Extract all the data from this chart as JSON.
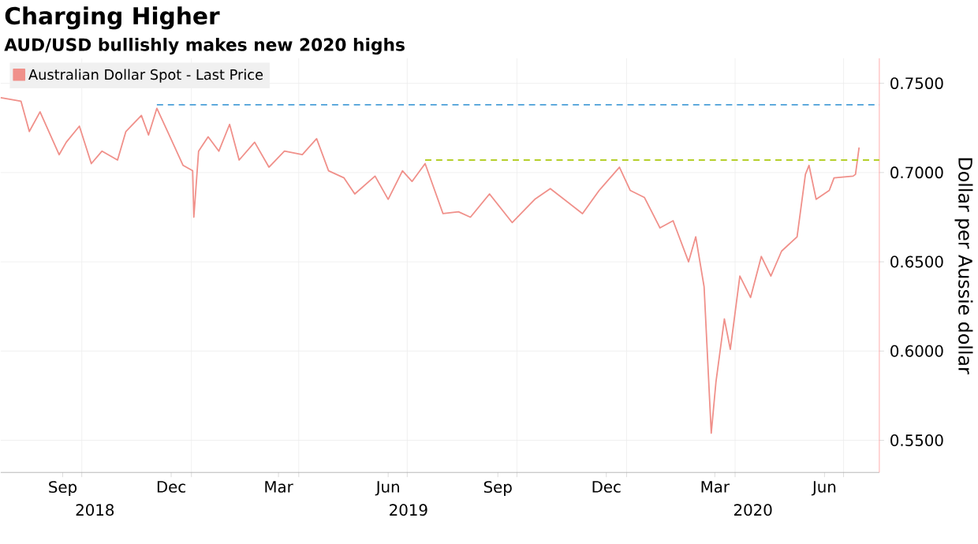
{
  "chart_data": {
    "type": "line",
    "title": "Charging Higher",
    "subtitle": "AUD/USD bullishly makes new 2020 highs",
    "ylabel": "Dollar per Aussie dollar",
    "xlim": [
      "2018-07-25",
      "2020-07-31"
    ],
    "ylim": [
      0.532,
      0.764
    ],
    "xticks": [
      {
        "value": "2018-09-15",
        "label": "Sep"
      },
      {
        "value": "2018-12-15",
        "label": "Dec"
      },
      {
        "value": "2019-03-15",
        "label": "Mar"
      },
      {
        "value": "2019-06-15",
        "label": "Jun"
      },
      {
        "value": "2019-09-15",
        "label": "Sep"
      },
      {
        "value": "2019-12-15",
        "label": "Dec"
      },
      {
        "value": "2020-03-15",
        "label": "Mar"
      },
      {
        "value": "2020-06-15",
        "label": "Jun"
      },
      {
        "value": "2018-10-01",
        "label": null
      },
      {
        "value": "2019-01-01",
        "label": null
      },
      {
        "value": "2019-04-01",
        "label": null
      },
      {
        "value": "2019-07-01",
        "label": null
      },
      {
        "value": "2019-10-01",
        "label": null
      },
      {
        "value": "2020-01-01",
        "label": null
      },
      {
        "value": "2020-04-01",
        "label": null
      },
      {
        "value": "2020-07-01",
        "label": null
      }
    ],
    "yticks": [
      {
        "value": 0.55,
        "label": "0.5500"
      },
      {
        "value": 0.6,
        "label": "0.6000"
      },
      {
        "value": 0.65,
        "label": "0.6500"
      },
      {
        "value": 0.7,
        "label": "0.7000"
      },
      {
        "value": 0.75,
        "label": "0.7500"
      }
    ],
    "annotations": [
      "2018",
      "2019",
      "2020"
    ],
    "grid": true,
    "legend": "top left",
    "marker": "none",
    "series": [
      {
        "name": "Australian Dollar Spot - Last Price",
        "color": "#f0908a",
        "line_style": "solid",
        "x": [
          "2018-07-25",
          "2018-08-11",
          "2018-08-18",
          "2018-08-27",
          "2018-09-12",
          "2018-09-18",
          "2018-09-29",
          "2018-10-09",
          "2018-10-18",
          "2018-10-31",
          "2018-11-07",
          "2018-11-20",
          "2018-11-26",
          "2018-12-03",
          "2018-12-12",
          "2018-12-25",
          "2019-01-02",
          "2019-01-03",
          "2019-01-07",
          "2019-01-15",
          "2019-01-24",
          "2019-02-02",
          "2019-02-10",
          "2019-02-23",
          "2019-03-07",
          "2019-03-20",
          "2019-04-04",
          "2019-04-16",
          "2019-04-26",
          "2019-05-09",
          "2019-05-18",
          "2019-06-04",
          "2019-06-15",
          "2019-06-27",
          "2019-07-05",
          "2019-07-16",
          "2019-07-31",
          "2019-08-13",
          "2019-08-23",
          "2019-09-08",
          "2019-09-27",
          "2019-10-16",
          "2019-10-29",
          "2019-11-25",
          "2019-12-09",
          "2019-12-26",
          "2020-01-04",
          "2020-01-16",
          "2020-01-29",
          "2020-02-09",
          "2020-02-22",
          "2020-02-28",
          "2020-03-06",
          "2020-03-12",
          "2020-03-16",
          "2020-03-23",
          "2020-03-28",
          "2020-04-05",
          "2020-04-14",
          "2020-04-23",
          "2020-05-01",
          "2020-05-10",
          "2020-05-23",
          "2020-05-30",
          "2020-06-02",
          "2020-06-08",
          "2020-06-19",
          "2020-06-23",
          "2020-07-09",
          "2020-07-11",
          "2020-07-14"
        ],
        "values": [
          0.742,
          0.74,
          0.723,
          0.734,
          0.71,
          0.717,
          0.726,
          0.705,
          0.712,
          0.707,
          0.723,
          0.732,
          0.721,
          0.736,
          0.723,
          0.704,
          0.701,
          0.675,
          0.712,
          0.72,
          0.712,
          0.727,
          0.707,
          0.717,
          0.703,
          0.712,
          0.71,
          0.719,
          0.701,
          0.697,
          0.688,
          0.698,
          0.685,
          0.701,
          0.695,
          0.705,
          0.677,
          0.678,
          0.675,
          0.688,
          0.672,
          0.685,
          0.691,
          0.677,
          0.69,
          0.703,
          0.69,
          0.686,
          0.669,
          0.673,
          0.65,
          0.664,
          0.636,
          0.554,
          0.583,
          0.618,
          0.601,
          0.642,
          0.63,
          0.653,
          0.642,
          0.656,
          0.664,
          0.699,
          0.704,
          0.685,
          0.69,
          0.697,
          0.698,
          0.699,
          0.714
        ]
      },
      {
        "color": "#4a9fd8",
        "line_style": "dashed",
        "x": [
          "2018-12-03",
          "2020-07-31"
        ],
        "values": [
          0.738,
          0.738
        ]
      },
      {
        "color": "#b5cf2a",
        "line_style": "dashed",
        "x": [
          "2019-07-16",
          "2020-07-31"
        ],
        "values": [
          0.707,
          0.707
        ]
      }
    ]
  }
}
